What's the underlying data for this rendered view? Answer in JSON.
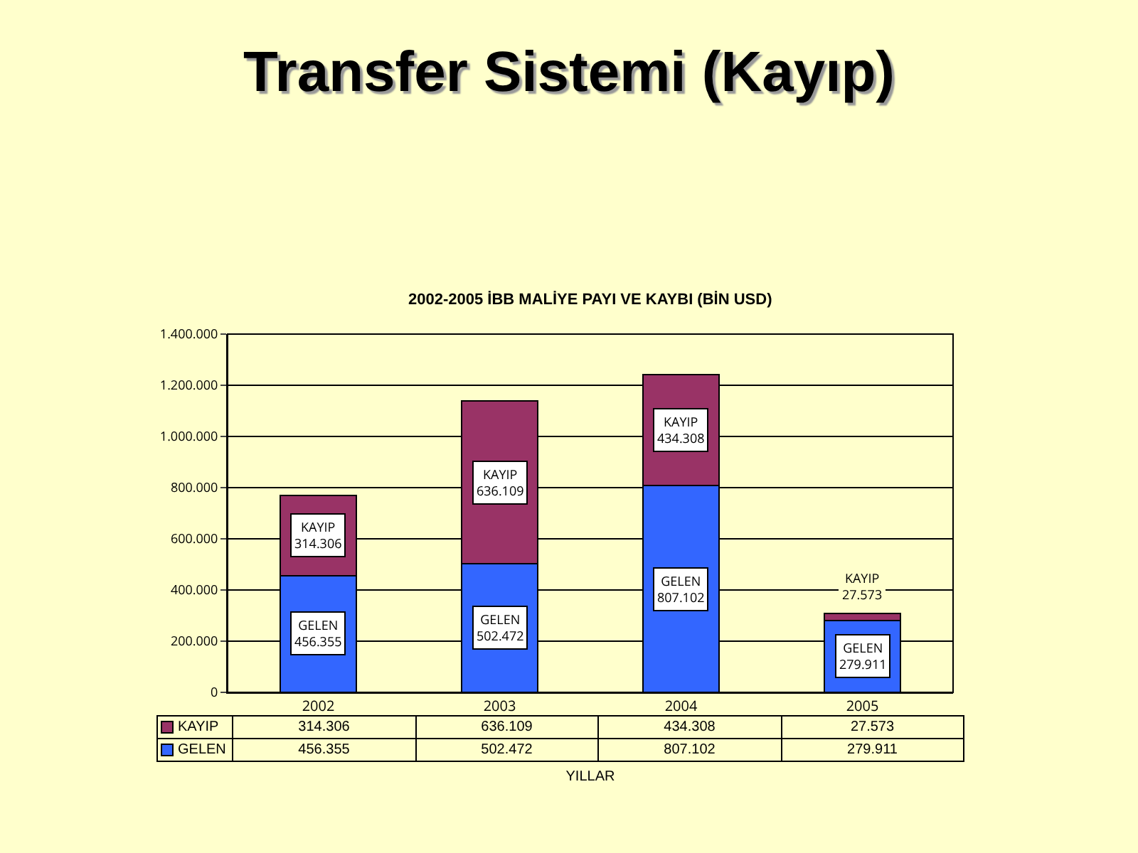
{
  "chart_data": {
    "type": "bar",
    "title": "Transfer Sistemi (Kayıp)",
    "subtitle": "2002-2005 İBB MALİYE PAYI VE KAYBI (BİN USD)",
    "xlabel": "YILLAR",
    "categories": [
      "2002",
      "2003",
      "2004",
      "2005"
    ],
    "series": [
      {
        "name": "GELEN",
        "color": "#3366ff",
        "values": [
          456355,
          502472,
          807102,
          279911
        ],
        "value_labels": [
          "456.355",
          "502.472",
          "807.102",
          "279.911"
        ]
      },
      {
        "name": "KAYIP",
        "color": "#993366",
        "values": [
          314306,
          636109,
          434308,
          27573
        ],
        "value_labels": [
          "314.306",
          "636.109",
          "434.308",
          "27.573"
        ]
      }
    ],
    "stacked": true,
    "grid": "y",
    "legend": "bottom left",
    "ylim": [
      0,
      1400000
    ],
    "yticks": [
      0,
      {
        "value": 200000,
        "label": "200.000"
      },
      {
        "value": 400000,
        "label": "400.000"
      },
      {
        "value": 600000,
        "label": "600.000"
      },
      {
        "value": 800000,
        "label": "800.000"
      },
      {
        "value": 1000000,
        "label": "1.000.000"
      },
      {
        "value": 1200000,
        "label": "1.200.000"
      },
      {
        "value": 1400000,
        "label": "1.400.000"
      }
    ]
  }
}
